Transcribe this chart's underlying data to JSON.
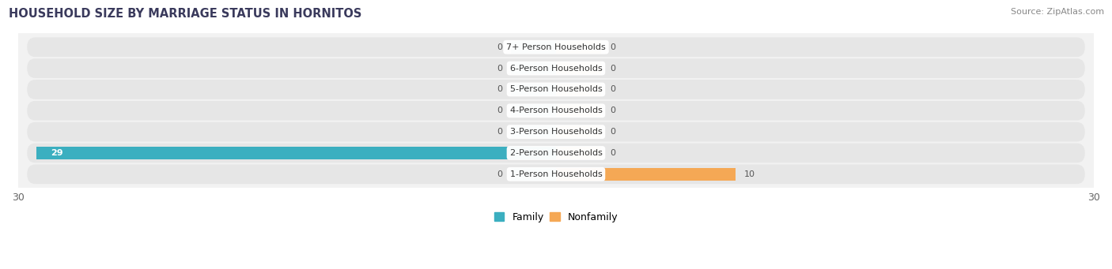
{
  "title": "HOUSEHOLD SIZE BY MARRIAGE STATUS IN HORNITOS",
  "source": "Source: ZipAtlas.com",
  "categories": [
    "7+ Person Households",
    "6-Person Households",
    "5-Person Households",
    "4-Person Households",
    "3-Person Households",
    "2-Person Households",
    "1-Person Households"
  ],
  "family_values": [
    0,
    0,
    0,
    0,
    0,
    29,
    0
  ],
  "nonfamily_values": [
    0,
    0,
    0,
    0,
    0,
    0,
    10
  ],
  "family_color": "#3BAFC0",
  "nonfamily_color": "#F5A855",
  "family_stub_color": "#8ECDD8",
  "nonfamily_stub_color": "#F7CFA0",
  "stub_size": 2.5,
  "xlim": [
    -30,
    30
  ],
  "bar_height": 0.58,
  "row_bg_color": "#e8e8e8",
  "row_alt_bg_color": "#e0e0e0",
  "fig_bg": "#ffffff",
  "title_fontsize": 10.5,
  "source_fontsize": 8,
  "tick_fontsize": 9,
  "label_fontsize": 8,
  "val_fontsize": 8
}
